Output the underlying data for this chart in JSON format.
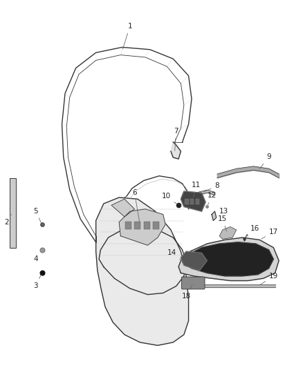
{
  "background_color": "#ffffff",
  "fig_width": 4.38,
  "fig_height": 5.33,
  "dpi": 100,
  "line_color": "#333333",
  "label_color": "#222222",
  "label_fontsize": 7.5
}
